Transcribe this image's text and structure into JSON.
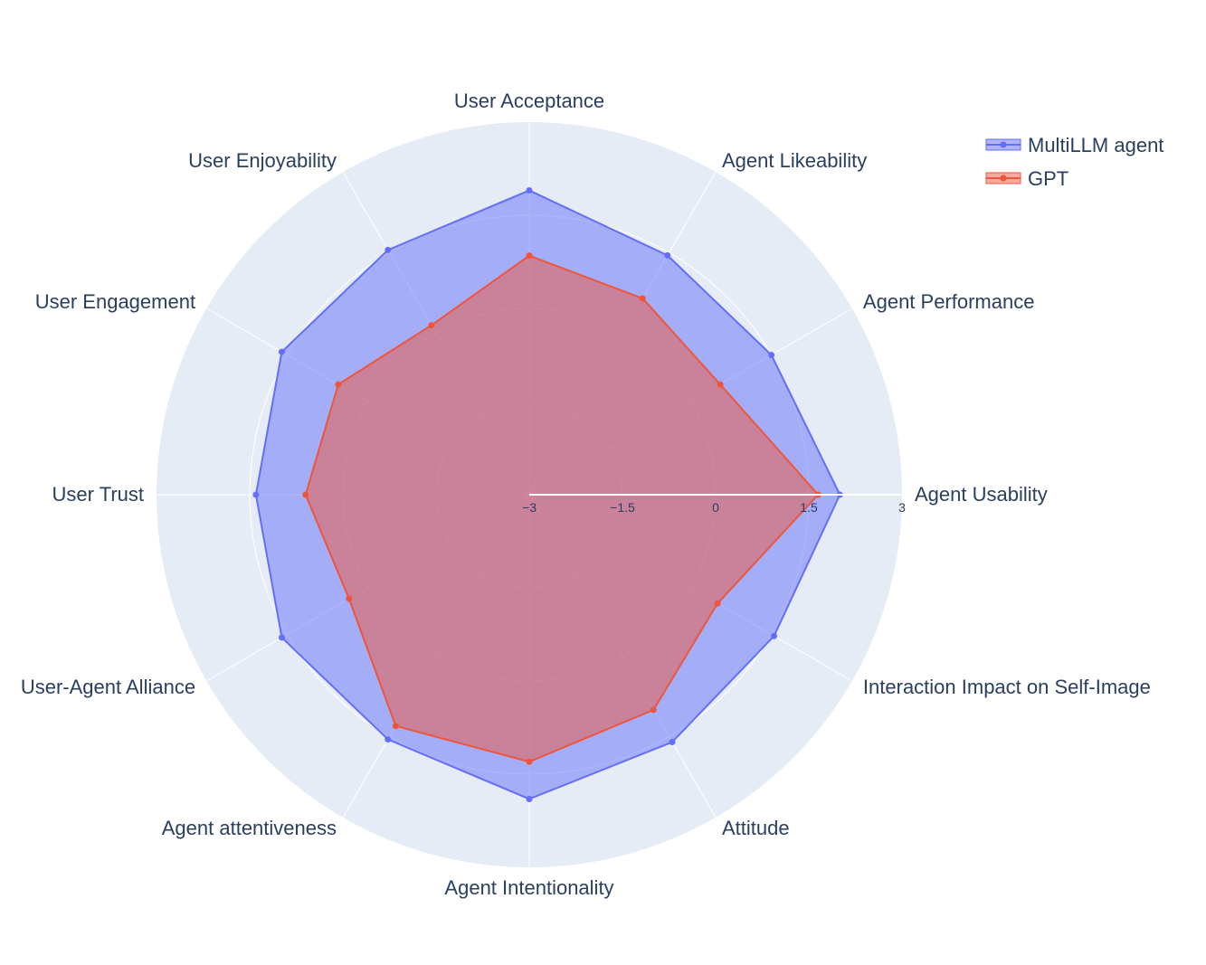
{
  "chart_data": {
    "type": "radar",
    "title": "",
    "categories": [
      "Agent Usability",
      "Agent Performance",
      "Agent Likeability",
      "User Acceptance",
      "User Enjoyability",
      "User Engagement",
      "User Trust",
      "User-Agent Alliance",
      "Agent attentiveness",
      "Agent Intentionality",
      "Attitude",
      "Interaction Impact on Self-Image"
    ],
    "radial_range": [
      -3,
      3
    ],
    "radial_ticks": [
      -3,
      -1.5,
      0,
      1.5,
      3
    ],
    "radial_tick_labels": [
      "−3",
      "−1.5",
      "0",
      "1.5",
      "3"
    ],
    "grid": true,
    "legend_position": "top-right",
    "series": [
      {
        "name": "MultiLLM agent",
        "color": "#636efa",
        "fill": "rgba(99,110,250,0.5)",
        "values": [
          2.0,
          1.5,
          1.45,
          1.9,
          1.55,
          1.6,
          1.4,
          1.6,
          1.55,
          1.9,
          1.6,
          1.55
        ]
      },
      {
        "name": "GPT",
        "color": "#ef553b",
        "fill": "rgba(239,85,59,0.5)",
        "values": [
          1.65,
          0.55,
          0.65,
          0.85,
          0.15,
          0.55,
          0.6,
          0.35,
          1.3,
          1.3,
          1.0,
          0.5
        ]
      }
    ]
  }
}
